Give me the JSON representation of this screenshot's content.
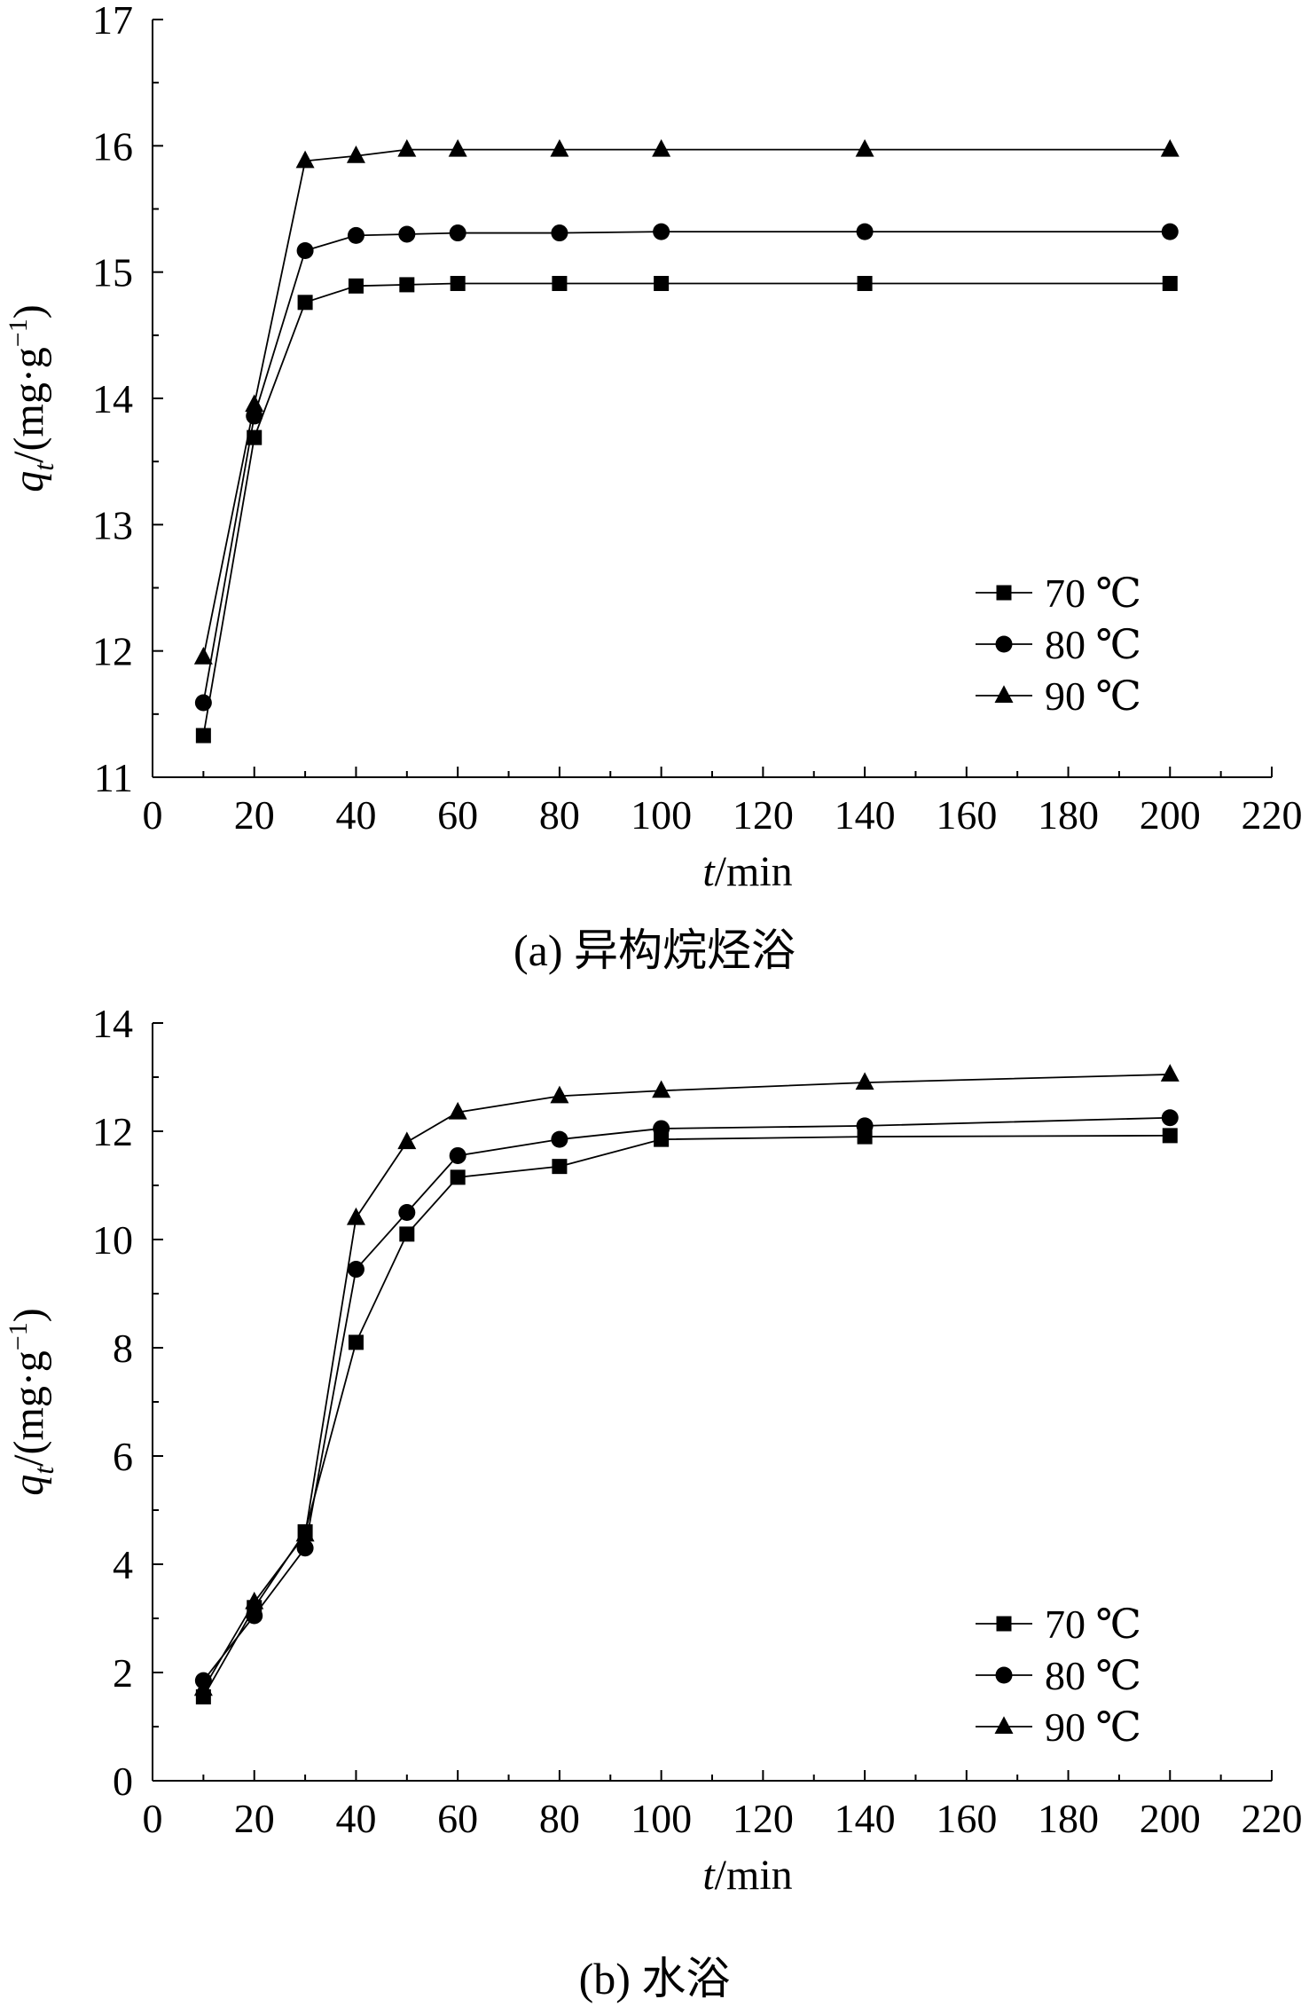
{
  "chart_data": [
    {
      "type": "line",
      "caption": "(a) 异构烷烃浴",
      "xlabel_italic": "t",
      "xlabel_rest": "/min",
      "ylabel_italic": "q",
      "ylabel_sub": "t",
      "ylabel_rest": "/(mg·g",
      "ylabel_sup": "−1",
      "ylabel_close": ")",
      "xlim": [
        0,
        220
      ],
      "ylim": [
        11,
        17
      ],
      "xticks": [
        0,
        20,
        40,
        60,
        80,
        100,
        120,
        140,
        160,
        180,
        200,
        220
      ],
      "yticks": [
        11,
        12,
        13,
        14,
        15,
        16,
        17
      ],
      "grid": false,
      "legend_position": "right",
      "x": [
        10,
        20,
        30,
        40,
        50,
        60,
        80,
        100,
        140,
        200
      ],
      "series": [
        {
          "name": "70 ℃",
          "marker": "square",
          "values": [
            11.33,
            13.69,
            14.76,
            14.89,
            14.9,
            14.91,
            14.91,
            14.91,
            14.91,
            14.91
          ]
        },
        {
          "name": "80 ℃",
          "marker": "circle",
          "values": [
            11.59,
            13.86,
            15.17,
            15.29,
            15.3,
            15.31,
            15.31,
            15.32,
            15.32,
            15.32
          ]
        },
        {
          "name": "90 ℃",
          "marker": "triangle",
          "values": [
            11.95,
            13.95,
            15.88,
            15.92,
            15.97,
            15.97,
            15.97,
            15.97,
            15.97,
            15.97
          ]
        }
      ]
    },
    {
      "type": "line",
      "caption": "(b) 水浴",
      "xlabel_italic": "t",
      "xlabel_rest": "/min",
      "ylabel_italic": "q",
      "ylabel_sub": "t",
      "ylabel_rest": "/(mg·g",
      "ylabel_sup": "−1",
      "ylabel_close": ")",
      "xlim": [
        0,
        220
      ],
      "ylim": [
        0,
        14
      ],
      "xticks": [
        0,
        20,
        40,
        60,
        80,
        100,
        120,
        140,
        160,
        180,
        200,
        220
      ],
      "yticks": [
        0,
        2,
        4,
        6,
        8,
        10,
        12,
        14
      ],
      "grid": false,
      "legend_position": "right",
      "x": [
        10,
        20,
        30,
        40,
        50,
        60,
        80,
        100,
        140,
        200
      ],
      "series": [
        {
          "name": "70 ℃",
          "marker": "square",
          "values": [
            1.55,
            3.2,
            4.6,
            8.1,
            10.1,
            11.15,
            11.35,
            11.85,
            11.9,
            11.92
          ]
        },
        {
          "name": "80 ℃",
          "marker": "circle",
          "values": [
            1.85,
            3.05,
            4.3,
            9.45,
            10.5,
            11.55,
            11.85,
            12.05,
            12.1,
            12.25
          ]
        },
        {
          "name": "90 ℃",
          "marker": "triangle",
          "values": [
            1.7,
            3.3,
            4.55,
            10.4,
            11.8,
            12.35,
            12.65,
            12.75,
            12.9,
            13.05
          ]
        }
      ]
    }
  ]
}
